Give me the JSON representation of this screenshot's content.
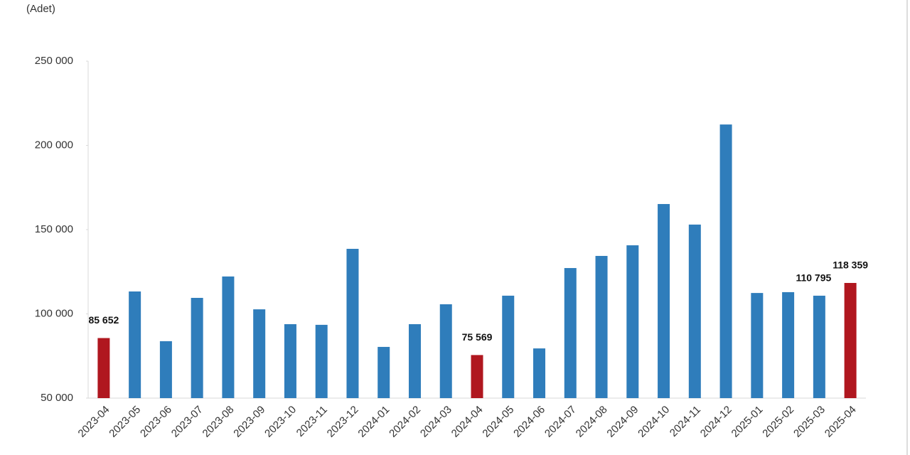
{
  "chart_data": {
    "type": "bar",
    "y_axis_label": "(Adet)",
    "categories": [
      "2023-04",
      "2023-05",
      "2023-06",
      "2023-07",
      "2023-08",
      "2023-09",
      "2023-10",
      "2023-11",
      "2023-12",
      "2024-01",
      "2024-02",
      "2024-03",
      "2024-04",
      "2024-05",
      "2024-06",
      "2024-07",
      "2024-08",
      "2024-09",
      "2024-10",
      "2024-11",
      "2024-12",
      "2025-01",
      "2025-02",
      "2025-03",
      "2025-04"
    ],
    "values": [
      85652,
      113300,
      83800,
      109500,
      122200,
      102700,
      93900,
      93500,
      138600,
      80400,
      93900,
      105700,
      75569,
      110800,
      79500,
      127200,
      134400,
      140700,
      165200,
      153000,
      212400,
      112400,
      112900,
      110795,
      118359
    ],
    "value_labels": [
      "85 652",
      null,
      null,
      null,
      null,
      null,
      null,
      null,
      null,
      null,
      null,
      null,
      "75 569",
      null,
      null,
      null,
      null,
      null,
      null,
      null,
      null,
      null,
      null,
      "110 795",
      "118 359"
    ],
    "colors": [
      "#b0171f",
      "#2f7dbb",
      "#2f7dbb",
      "#2f7dbb",
      "#2f7dbb",
      "#2f7dbb",
      "#2f7dbb",
      "#2f7dbb",
      "#2f7dbb",
      "#2f7dbb",
      "#2f7dbb",
      "#2f7dbb",
      "#b0171f",
      "#2f7dbb",
      "#2f7dbb",
      "#2f7dbb",
      "#2f7dbb",
      "#2f7dbb",
      "#2f7dbb",
      "#2f7dbb",
      "#2f7dbb",
      "#2f7dbb",
      "#2f7dbb",
      "#2f7dbb",
      "#b0171f"
    ],
    "ylim": [
      50000,
      250000
    ],
    "yticks": [
      {
        "value": 50000,
        "label": "50 000"
      },
      {
        "value": 100000,
        "label": "100 000"
      },
      {
        "value": 150000,
        "label": "150 000"
      },
      {
        "value": 200000,
        "label": "200 000"
      },
      {
        "value": 250000,
        "label": "250 000"
      }
    ],
    "grid": false
  }
}
